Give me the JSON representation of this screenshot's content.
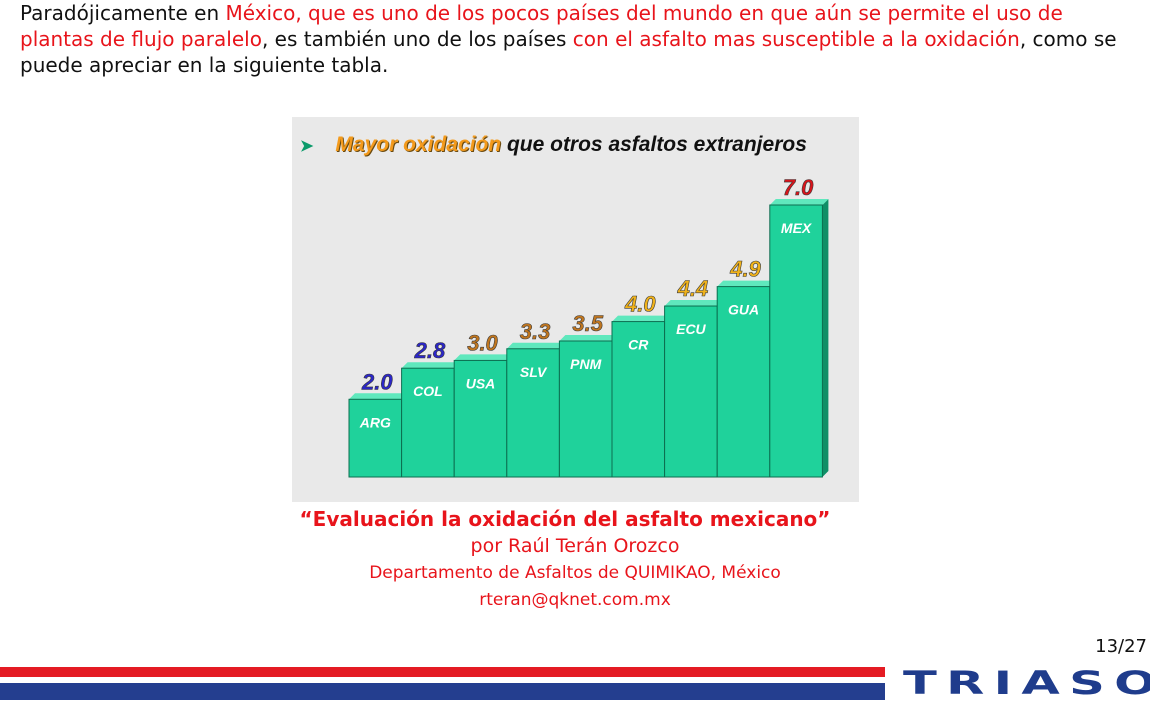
{
  "intro": {
    "p1": "Paradójicamente en ",
    "p2": "México, que es uno de los pocos países del mundo en que aún se permite el uso de plantas de flujo paralelo",
    "p3": ", es también uno de los países ",
    "p4": "con el asfalto mas susceptible a la oxidación",
    "p5": ", como se puede apreciar en la siguiente tabla."
  },
  "chart_data": {
    "type": "bar",
    "title_arrow": "➤",
    "title_accent": "Mayor oxidación",
    "title_rest": " que otros asfaltos extranjeros",
    "categories": [
      "ARG",
      "COL",
      "USA",
      "SLV",
      "PNM",
      "CR",
      "ECU",
      "GUA",
      "MEX"
    ],
    "values": [
      2.0,
      2.8,
      3.0,
      3.3,
      3.5,
      4.0,
      4.4,
      4.9,
      7.0
    ],
    "value_labels": [
      "2.0",
      "2.8",
      "3.0",
      "3.3",
      "3.5",
      "4.0",
      "4.4",
      "4.9",
      "7.0"
    ],
    "value_label_colors": [
      "#2b26c8",
      "#2b26c8",
      "#c0761f",
      "#c0761f",
      "#c0761f",
      "#f0b21a",
      "#f0b21a",
      "#f0b21a",
      "#d8141b"
    ],
    "bar_color": "#1fd29b",
    "grid": false
  },
  "citation": {
    "title": "“Evaluación la oxidación del asfalto mexicano”",
    "author": "por Raúl Terán Orozco",
    "dept": "Departamento de Asfaltos de QUIMIKAO, México",
    "email": "rteran@qknet.com.mx"
  },
  "page_number": "13/27",
  "logo_text": "TRIASO",
  "colors": {
    "red": "#e8141b",
    "blue": "#1f3c8c",
    "footer_red": "#e41b23",
    "footer_blue": "#243e8f"
  }
}
